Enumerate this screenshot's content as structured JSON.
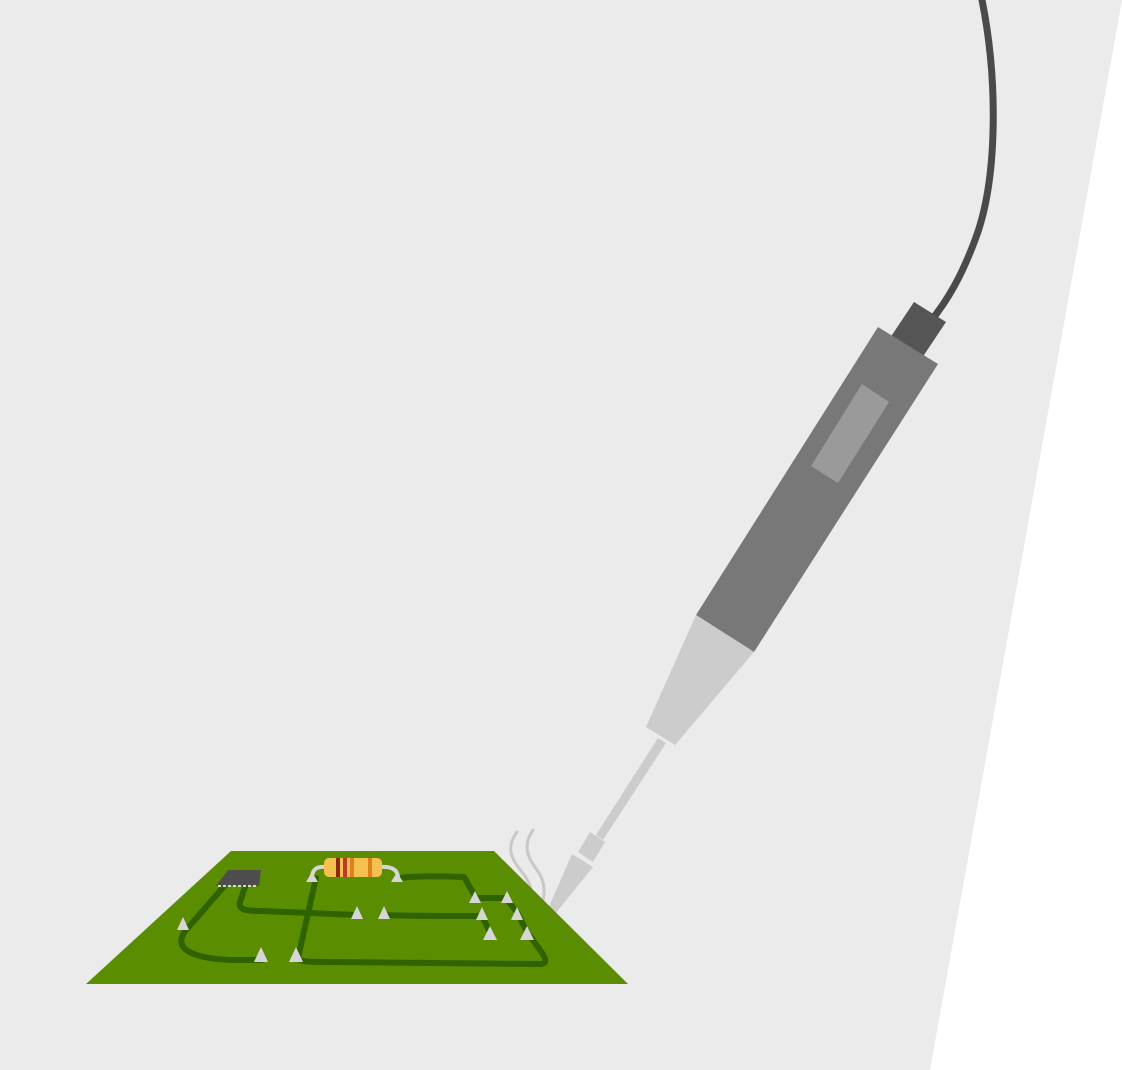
{
  "scene": {
    "subject": "soldering-iron-on-circuit-board",
    "colors": {
      "page": "#ffffff",
      "backdrop": "#ebebeb",
      "board": "#5a8e00",
      "trace": "#2f6300",
      "solder": "#d6d6d6",
      "iron_body": "#787878",
      "iron_grip_window": "#9a9a9a",
      "iron_cap": "#555555",
      "cable": "#4a4a4a",
      "iron_tip": "#cccccc",
      "chip": "#4d4d4d",
      "resistor_body": "#f5c050",
      "resistor_band_brown": "#8a2b0a",
      "resistor_band_red": "#c0392b",
      "resistor_band_orange": "#e0801a",
      "smoke": "#c8c8c8"
    }
  }
}
